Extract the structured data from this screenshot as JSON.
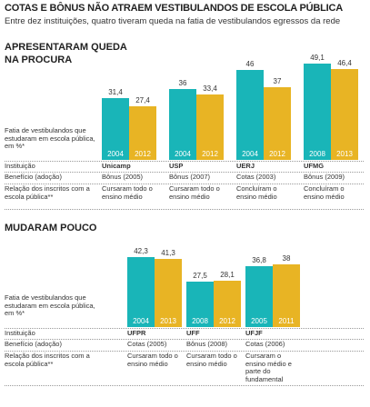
{
  "title": "COTAS E BÔNUS NÃO ATRAEM VESTIBULANDOS DE ESCOLA PÚBLICA",
  "subtitle": "Entre dez instituições, quatro tiveram queda na fatia de vestibulandos egressos da rede",
  "chart_data": [
    {
      "type": "bar",
      "title": "APRESENTARAM QUEDA NA PROCURA",
      "value_axis_label": "Fatia de vestibulandos que estudaram em escola pública, em %*",
      "row_labels": [
        "Instituição",
        "Benefício (adoção)",
        "Relação dos inscritos com a escola pública**"
      ],
      "categories": [
        "Unicamp",
        "USP",
        "UERJ",
        "UFMG"
      ],
      "benefits": [
        "Bônus (2005)",
        "Bônus (2007)",
        "Cotas (2003)",
        "Bônus (2009)"
      ],
      "relations": [
        "Cursaram todo o ensino médio",
        "Cursaram todo o ensino médio",
        "Concluíram o ensino médio",
        "Concluíram o ensino médio"
      ],
      "series": [
        {
          "color": "#19b5b8",
          "periods": [
            "2004",
            "2004",
            "2004",
            "2008"
          ],
          "values": [
            31.4,
            36,
            46,
            49.1
          ],
          "value_labels": [
            "31,4",
            "36",
            "46",
            "49,1"
          ]
        },
        {
          "color": "#e8b424",
          "periods": [
            "2012",
            "2012",
            "2012",
            "2013"
          ],
          "values": [
            27.4,
            33.4,
            37,
            46.4
          ],
          "value_labels": [
            "27,4",
            "33,4",
            "37",
            "46,4"
          ]
        }
      ],
      "ylim": [
        0,
        50
      ]
    },
    {
      "type": "bar",
      "title": "MUDARAM POUCO",
      "value_axis_label": "Fatia de vestibulandos que estudaram em escola pública, em %*",
      "row_labels": [
        "Instituição",
        "Benefício (adoção)",
        "Relação dos inscritos com a escola pública**"
      ],
      "categories": [
        "UFPR",
        "UFF",
        "UFJF"
      ],
      "benefits": [
        "Cotas (2005)",
        "Bônus (2008)",
        "Cotas (2006)"
      ],
      "relations": [
        "Cursaram todo o ensino médio",
        "Cursaram todo o ensino médio",
        "Cursaram o ensino médio e parte do fundamental"
      ],
      "series": [
        {
          "color": "#19b5b8",
          "periods": [
            "2004",
            "2008",
            "2005"
          ],
          "values": [
            42.3,
            27.5,
            36.8
          ],
          "value_labels": [
            "42,3",
            "27,5",
            "36,8"
          ]
        },
        {
          "color": "#e8b424",
          "periods": [
            "2013",
            "2012",
            "2011"
          ],
          "values": [
            41.3,
            28.1,
            38
          ],
          "value_labels": [
            "41,3",
            "28,1",
            "38"
          ]
        }
      ],
      "ylim": [
        0,
        50
      ]
    }
  ]
}
